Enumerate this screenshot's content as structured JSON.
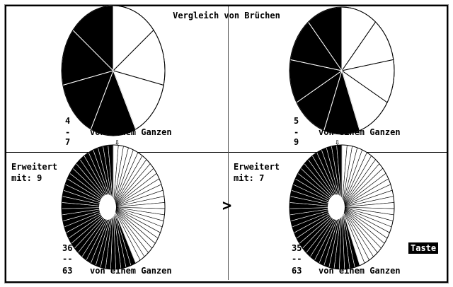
{
  "title": "Vergleich von Brüchen",
  "caption": "von einem Ganzen",
  "comparison_symbol": ">",
  "key_prompt": "Taste",
  "arrow_icon": "⇩",
  "panels": [
    {
      "numerator": "4",
      "bar": "-",
      "denominator": "7",
      "sectors": 7,
      "filled": 4
    },
    {
      "numerator": "5",
      "bar": "-",
      "denominator": "9",
      "sectors": 9,
      "filled": 5
    },
    {
      "label": "Erweitert",
      "factor_label": "mit: 9",
      "numerator": "36",
      "bar": "--",
      "denominator": "63",
      "sectors": 63,
      "filled": 36
    },
    {
      "label": "Erweitert",
      "factor_label": "mit: 7",
      "numerator": "35",
      "bar": "--",
      "denominator": "63",
      "sectors": 63,
      "filled": 35
    }
  ],
  "colors": {
    "fill": "#000000",
    "background": "#ffffff"
  }
}
